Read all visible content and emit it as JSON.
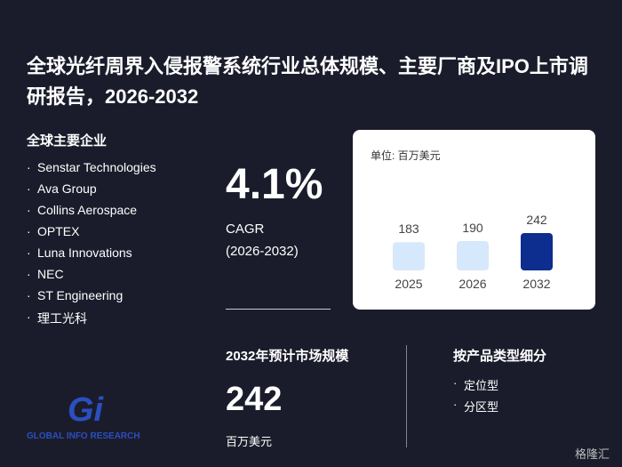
{
  "header": {
    "title": "全球光纤周界入侵报警系统行业总体规模、主要厂商及IPO上市调研报告，2026-2032"
  },
  "companies": {
    "title": "全球主要企业",
    "items": [
      "Senstar Technologies",
      "Ava Group",
      "Collins Aerospace",
      "OPTEX",
      "Luna Innovations",
      "NEC",
      "ST Engineering",
      "理工光科"
    ]
  },
  "cagr": {
    "value": "4.1%",
    "label": "CAGR",
    "period": "(2026-2032)"
  },
  "chart_data": {
    "type": "bar",
    "unit": "单位: 百万美元",
    "categories": [
      "2025",
      "2026",
      "2032"
    ],
    "values": [
      183,
      190,
      242
    ],
    "colors": [
      "#d6e8fb",
      "#d6e8fb",
      "#0d2e8f"
    ]
  },
  "market": {
    "title": "2032年预计市场规模",
    "value": "242",
    "unit": "百万美元"
  },
  "segments": {
    "title": "按产品类型细分",
    "items": [
      "定位型",
      "分区型"
    ]
  },
  "logo": {
    "mark": "Gi",
    "text": "GLOBAL INFO RESEARCH"
  },
  "watermark": "格隆汇"
}
